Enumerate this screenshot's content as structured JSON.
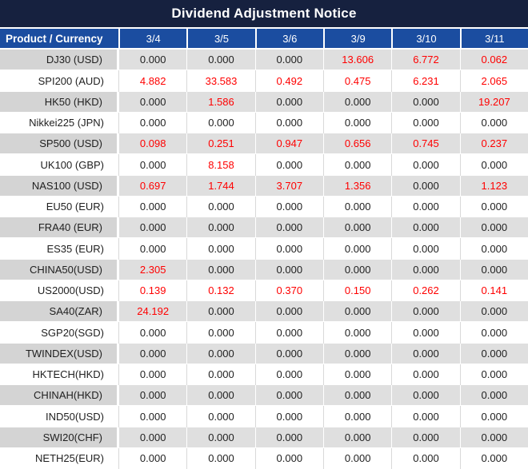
{
  "title": "Dividend Adjustment Notice",
  "chart_data": {
    "type": "table",
    "title": "Dividend Adjustment Notice",
    "columns": [
      "Product / Currency",
      "3/4",
      "3/5",
      "3/6",
      "3/9",
      "3/10",
      "3/11"
    ],
    "rows": [
      {
        "product": "DJ30 (USD)",
        "values": [
          "0.000",
          "0.000",
          "0.000",
          "13.606",
          "6.772",
          "0.062"
        ]
      },
      {
        "product": "SPI200 (AUD)",
        "values": [
          "4.882",
          "33.583",
          "0.492",
          "0.475",
          "6.231",
          "2.065"
        ]
      },
      {
        "product": "HK50 (HKD)",
        "values": [
          "0.000",
          "1.586",
          "0.000",
          "0.000",
          "0.000",
          "19.207"
        ]
      },
      {
        "product": "Nikkei225 (JPN)",
        "values": [
          "0.000",
          "0.000",
          "0.000",
          "0.000",
          "0.000",
          "0.000"
        ]
      },
      {
        "product": "SP500 (USD)",
        "values": [
          "0.098",
          "0.251",
          "0.947",
          "0.656",
          "0.745",
          "0.237"
        ]
      },
      {
        "product": "UK100 (GBP)",
        "values": [
          "0.000",
          "8.158",
          "0.000",
          "0.000",
          "0.000",
          "0.000"
        ]
      },
      {
        "product": "NAS100 (USD)",
        "values": [
          "0.697",
          "1.744",
          "3.707",
          "1.356",
          "0.000",
          "1.123"
        ]
      },
      {
        "product": "EU50 (EUR)",
        "values": [
          "0.000",
          "0.000",
          "0.000",
          "0.000",
          "0.000",
          "0.000"
        ]
      },
      {
        "product": "FRA40 (EUR)",
        "values": [
          "0.000",
          "0.000",
          "0.000",
          "0.000",
          "0.000",
          "0.000"
        ]
      },
      {
        "product": "ES35 (EUR)",
        "values": [
          "0.000",
          "0.000",
          "0.000",
          "0.000",
          "0.000",
          "0.000"
        ]
      },
      {
        "product": "CHINA50(USD)",
        "values": [
          "2.305",
          "0.000",
          "0.000",
          "0.000",
          "0.000",
          "0.000"
        ]
      },
      {
        "product": "US2000(USD)",
        "values": [
          "0.139",
          "0.132",
          "0.370",
          "0.150",
          "0.262",
          "0.141"
        ]
      },
      {
        "product": "SA40(ZAR)",
        "values": [
          "24.192",
          "0.000",
          "0.000",
          "0.000",
          "0.000",
          "0.000"
        ]
      },
      {
        "product": "SGP20(SGD)",
        "values": [
          "0.000",
          "0.000",
          "0.000",
          "0.000",
          "0.000",
          "0.000"
        ]
      },
      {
        "product": "TWINDEX(USD)",
        "values": [
          "0.000",
          "0.000",
          "0.000",
          "0.000",
          "0.000",
          "0.000"
        ]
      },
      {
        "product": "HKTECH(HKD)",
        "values": [
          "0.000",
          "0.000",
          "0.000",
          "0.000",
          "0.000",
          "0.000"
        ]
      },
      {
        "product": "CHINAH(HKD)",
        "values": [
          "0.000",
          "0.000",
          "0.000",
          "0.000",
          "0.000",
          "0.000"
        ]
      },
      {
        "product": "IND50(USD)",
        "values": [
          "0.000",
          "0.000",
          "0.000",
          "0.000",
          "0.000",
          "0.000"
        ]
      },
      {
        "product": "SWI20(CHF)",
        "values": [
          "0.000",
          "0.000",
          "0.000",
          "0.000",
          "0.000",
          "0.000"
        ]
      },
      {
        "product": "NETH25(EUR)",
        "values": [
          "0.000",
          "0.000",
          "0.000",
          "0.000",
          "0.000",
          "0.000"
        ]
      }
    ],
    "value_style_rule": "non-zero values shown in red, zero values in near-black",
    "row_style_rule": "alternating gray/white rows starting with gray"
  },
  "colors": {
    "title_bg": "#16213f",
    "header_bg": "#1b4da0",
    "row_gray": "#dfdfdf",
    "row_gray_product": "#d4d4d4",
    "row_white": "#ffffff",
    "zero_text": "#1f1f1f",
    "nonzero_text": "#ff0000"
  }
}
